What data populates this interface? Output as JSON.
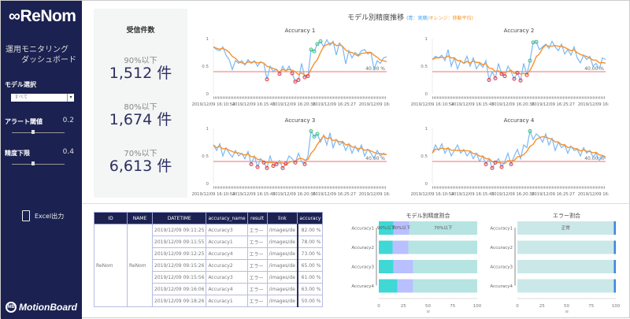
{
  "sidebar": {
    "logo": "∞ReNom",
    "subtitle": "運用モニタリング\n　　ダッシュボード",
    "model_label": "モデル選択",
    "model_value": "すべて",
    "alert_label": "アラート閾値",
    "alert_value": "0.2",
    "precision_label": "精度下限",
    "precision_value": "0.4",
    "excel_label": "Excel出力",
    "brand": "MotionBoard",
    "brand_badge": "MB"
  },
  "kpi": {
    "title": "受信件数",
    "items": [
      {
        "label": "90%以下",
        "value": "1,512 件"
      },
      {
        "label": "80%以下",
        "value": "1,674 件"
      },
      {
        "label": "70%以下",
        "value": "6,613 件"
      }
    ]
  },
  "trend": {
    "title": "モデル別精度推移",
    "legend_open": "(",
    "legend_blue": "青：実績",
    "legend_sep": "/",
    "legend_orange": "オレンジ：移動平均",
    "legend_close": ")"
  },
  "table": {
    "headers": [
      "ID",
      "NAME",
      "DATETIME",
      "accuracy_name",
      "result",
      "link",
      "accuracy"
    ],
    "id": "ReNom",
    "name": "ReNom",
    "rows": [
      [
        "2019/12/09 09:11:25",
        "Accuracy3",
        "エラー",
        "/images/de",
        "82.00 %"
      ],
      [
        "2019/12/09 09:11:55",
        "Accuracy1",
        "エラー",
        "/images/de",
        "78.00 %"
      ],
      [
        "2019/12/09 09:12:25",
        "Accuracy4",
        "エラー",
        "/images/de",
        "73.00 %"
      ],
      [
        "2019/12/09 09:15:26",
        "Accuracy2",
        "エラー",
        "/images/de",
        "65.00 %"
      ],
      [
        "2019/12/09 09:15:56",
        "Accuracy3",
        "エラー",
        "/images/de",
        "61.00 %"
      ],
      [
        "2019/12/09 09:16:06",
        "Accuracy4",
        "エラー",
        "/images/de",
        "63.00 %"
      ],
      [
        "2019/12/09 09:18:26",
        "Accuracy1",
        "エラー",
        "/images/de",
        "50.00 %"
      ]
    ]
  },
  "chart_data": [
    {
      "type": "line",
      "title": "Accuracy 1",
      "ylim": [
        0,
        1
      ],
      "yticks": [
        "0",
        "0.5",
        "1"
      ],
      "threshold": 0.4,
      "threshold_label": "40.00 %",
      "xticks": [
        "2019/12/09 16:10:54",
        "2019/12/09 16:15:45",
        "2019/12/09 16:20:36",
        "2019/12/09 16:25:27",
        "2019/12/09 16:"
      ],
      "series": [
        {
          "name": "青：実績",
          "color": "#7ab8f5",
          "values": [
            0.85,
            0.8,
            0.78,
            0.85,
            0.7,
            0.62,
            0.44,
            0.6,
            0.55,
            0.6,
            0.52,
            0.62,
            0.55,
            0.6,
            0.5,
            0.58,
            0.55,
            0.26,
            0.5,
            0.4,
            0.45,
            0.36,
            0.5,
            0.4,
            0.5,
            0.37,
            0.22,
            0.25,
            0.55,
            0.3,
            0.32,
            0.8,
            0.77,
            0.9,
            0.95,
            0.85,
            0.98,
            0.88,
            0.95,
            0.7,
            0.92,
            0.85,
            0.54,
            0.78,
            0.65,
            0.75,
            0.7,
            0.78,
            0.8,
            0.72,
            0.75,
            0.44,
            0.6,
            0.55,
            0.65,
            0.67
          ]
        },
        {
          "name": "オレンジ：移動平均",
          "color": "#f5922e"
        }
      ]
    },
    {
      "type": "line",
      "title": "Accuracy 2",
      "ylim": [
        0,
        1
      ],
      "yticks": [
        "0",
        "0.5",
        "1"
      ],
      "threshold": 0.4,
      "threshold_label": "40.00 %",
      "xticks": [
        "2019/12/09 16:10:54",
        "2019/12/09 16:15:45",
        "2019/12/09 16:20:36",
        "2019/12/09 16:25:27",
        "2019/12/09 16:"
      ],
      "series": [
        {
          "name": "青：実績",
          "color": "#7ab8f5",
          "values": [
            0.62,
            0.68,
            0.65,
            0.7,
            0.6,
            0.8,
            0.5,
            0.65,
            0.45,
            0.6,
            0.55,
            0.68,
            0.5,
            0.65,
            0.45,
            0.55,
            0.48,
            0.6,
            0.25,
            0.4,
            0.28,
            0.55,
            0.36,
            0.32,
            0.5,
            0.4,
            0.27,
            0.38,
            0.24,
            0.55,
            0.34,
            0.6,
            0.93,
            0.94,
            0.8,
            0.85,
            0.9,
            0.82,
            0.95,
            0.85,
            0.78,
            0.9,
            0.72,
            0.8,
            0.7,
            0.85,
            0.65,
            0.56,
            0.7,
            0.62,
            0.68,
            0.5,
            0.55,
            0.45,
            0.65,
            0.62
          ]
        },
        {
          "name": "オレンジ：移動平均",
          "color": "#f5922e"
        }
      ]
    },
    {
      "type": "line",
      "title": "Accuracy 3",
      "ylim": [
        0,
        1
      ],
      "yticks": [
        "0",
        "0.5",
        "1"
      ],
      "threshold": 0.4,
      "threshold_label": "40.00 %",
      "xticks": [
        "2019/12/09 16:10:54",
        "2019/12/09 16:15:45",
        "2019/12/09 16:20:36",
        "2019/12/09 16:25:27",
        "2019/12/09 16:"
      ],
      "series": [
        {
          "name": "青：実績",
          "color": "#7ab8f5",
          "values": [
            0.7,
            0.6,
            0.72,
            0.5,
            0.65,
            0.55,
            0.48,
            0.6,
            0.5,
            0.55,
            0.45,
            0.58,
            0.35,
            0.5,
            0.3,
            0.45,
            0.38,
            0.28,
            0.5,
            0.32,
            0.35,
            0.42,
            0.28,
            0.36,
            0.5,
            0.45,
            0.38,
            0.55,
            0.4,
            0.35,
            0.5,
            0.95,
            0.85,
            0.9,
            0.75,
            0.88,
            0.7,
            0.92,
            0.65,
            0.8,
            0.7,
            0.75,
            0.6,
            0.72,
            0.55,
            0.68,
            0.58,
            0.7,
            0.5,
            0.62,
            0.55,
            0.45,
            0.6,
            0.5,
            0.55,
            0.52
          ]
        },
        {
          "name": "オレンジ：移動平均",
          "color": "#f5922e"
        }
      ]
    },
    {
      "type": "line",
      "title": "Accuracy 4",
      "ylim": [
        0,
        1
      ],
      "yticks": [
        "0",
        "0.5",
        "1"
      ],
      "threshold": 0.4,
      "threshold_label": "40.00 %",
      "xticks": [
        "2019/12/09 16:10:54",
        "2019/12/09 16:15:45",
        "2019/12/09 16:20:36",
        "2019/12/09 16:25:27",
        "2019/12/09 16:"
      ],
      "series": [
        {
          "name": "青：実績",
          "color": "#7ab8f5",
          "values": [
            0.55,
            0.7,
            0.6,
            0.72,
            0.55,
            0.65,
            0.5,
            0.6,
            0.7,
            0.55,
            0.62,
            0.5,
            0.58,
            0.45,
            0.55,
            0.4,
            0.5,
            0.35,
            0.45,
            0.28,
            0.38,
            0.45,
            0.3,
            0.4,
            0.55,
            0.35,
            0.5,
            0.62,
            0.45,
            0.7,
            0.65,
            0.95,
            0.8,
            0.9,
            0.85,
            0.75,
            0.9,
            0.7,
            0.82,
            0.6,
            0.75,
            0.65,
            0.7,
            0.55,
            0.68,
            0.6,
            0.62,
            0.5,
            0.65,
            0.55,
            0.6,
            0.48,
            0.55,
            0.42,
            0.5,
            0.45
          ]
        },
        {
          "name": "オレンジ：移動平均",
          "color": "#f5922e"
        }
      ]
    },
    {
      "type": "bar",
      "stacked": true,
      "orientation": "horizontal",
      "title": "モデル別精度割合",
      "xlabel": "id",
      "xlim": [
        0,
        100
      ],
      "xticks": [
        "0",
        "25",
        "50",
        "75",
        "100"
      ],
      "categories": [
        "Accuracy1",
        "Accuracy2",
        "Accuracy3",
        "Accuracy4"
      ],
      "series": [
        {
          "name": "90%以下",
          "color": "#3fd8d4",
          "values": [
            15,
            14,
            15,
            19
          ]
        },
        {
          "name": "80%以下",
          "color": "#b8c0ff",
          "values": [
            16,
            16,
            20,
            16
          ]
        },
        {
          "name": "70%以下",
          "color": "#b5e4e2",
          "values": [
            69,
            70,
            65,
            65
          ]
        }
      ]
    },
    {
      "type": "bar",
      "stacked": true,
      "orientation": "horizontal",
      "title": "エラー割合",
      "xlabel": "id",
      "xlim": [
        0,
        100
      ],
      "xticks": [
        "0",
        "25",
        "50",
        "75",
        "100"
      ],
      "categories": [
        "Accuracy1",
        "Accuracy2",
        "Accuracy3",
        "Accuracy4"
      ],
      "series": [
        {
          "name": "正常",
          "color": "#cbe8e8",
          "values": [
            98,
            98,
            98,
            98
          ]
        },
        {
          "name": "",
          "color": "#3b86e0",
          "values": [
            2,
            2,
            2,
            2
          ]
        }
      ]
    }
  ]
}
